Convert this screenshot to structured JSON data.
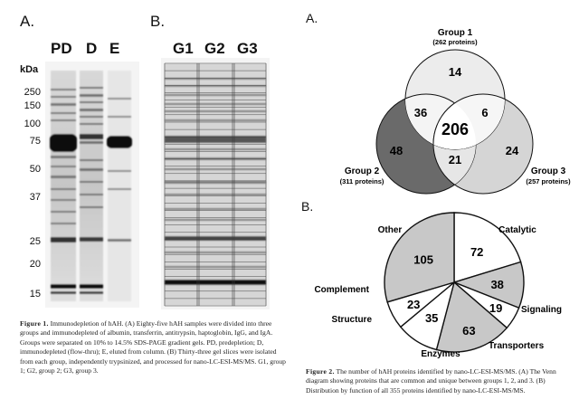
{
  "figure1": {
    "panel_a_letter": "A.",
    "panel_b_letter": "B.",
    "lanes_a": [
      "PD",
      "D",
      "E"
    ],
    "lanes_b": [
      "G1",
      "G2",
      "G3"
    ],
    "kda_label": "kDa",
    "markers": [
      "250",
      "150",
      "100",
      "75",
      "50",
      "37",
      "25",
      "20",
      "15"
    ],
    "caption_title": "Figure 1.",
    "caption_text": "Immunodepletion of hAH. (A) Eighty-five hAH samples were divided into three groups and immunodepleted of albumin, transferrin, antitrypsin, haptoglobin, IgG, and IgA. Groups were separated on 10% to 14.5% SDS-PAGE gradient gels. PD, predepletion; D, immunodepleted (flow-thru); E, eluted from column. (B) Thirty-three gel slices were isolated from each group, independently trypsinized, and processed for nano-LC-ESI-MS/MS. G1, group 1; G2, group 2; G3, group 3."
  },
  "figure2": {
    "panel_a_letter": "A.",
    "panel_b_letter": "B.",
    "venn": {
      "group1_name": "Group 1",
      "group1_count": "(262 proteins)",
      "group2_name": "Group 2",
      "group2_count": "(311 proteins)",
      "group3_name": "Group 3",
      "group3_count": "(257 proteins)",
      "only1": "14",
      "only2": "48",
      "only3": "24",
      "g1_g2": "36",
      "g1_g3": "6",
      "g2_g3": "21",
      "all": "206"
    },
    "chart_data": {
      "type": "pie",
      "title": "Distribution by function",
      "categories": [
        "Catalytic",
        "Signaling",
        "Transporters",
        "Enzymes",
        "Structure",
        "Complement",
        "Other"
      ],
      "values": [
        72,
        38,
        19,
        63,
        35,
        23,
        105
      ],
      "colors": [
        "#ffffff",
        "#c8c8c8",
        "#ffffff",
        "#c8c8c8",
        "#ffffff",
        "#ffffff",
        "#c8c8c8"
      ]
    },
    "caption_title": "Figure 2.",
    "caption_text": "The number of hAH proteins identified by nano-LC-ESI-MS/MS. (A) The Venn diagram showing proteins that are common and unique between groups 1, 2, and 3. (B) Distribution by function of all 355 proteins identified by nano-LC-ESI-MS/MS."
  }
}
